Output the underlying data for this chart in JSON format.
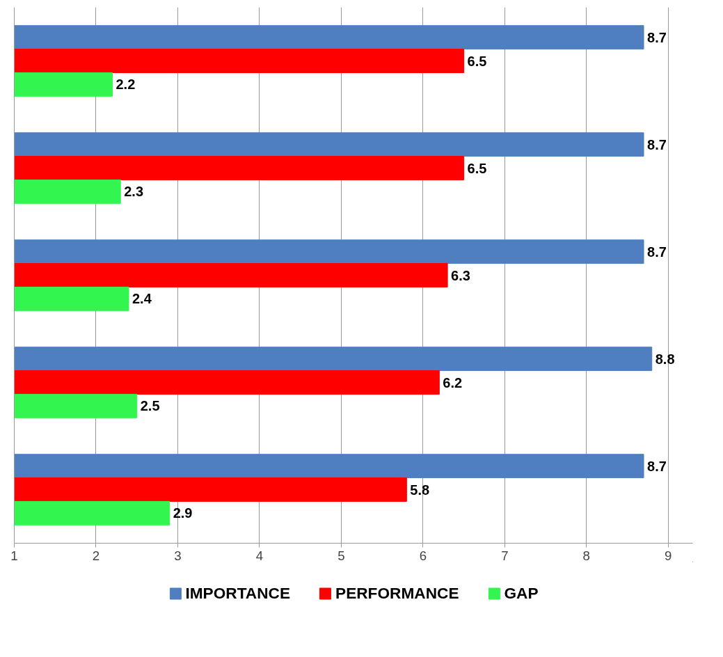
{
  "chart_data": {
    "type": "bar",
    "orientation": "horizontal",
    "categories": [
      null,
      null,
      null,
      null,
      null
    ],
    "series": [
      {
        "name": "IMPORTANCE",
        "color": "#4f7fc0",
        "values": [
          8.7,
          8.7,
          8.7,
          8.8,
          8.7
        ]
      },
      {
        "name": "PERFORMANCE",
        "color": "#ff0000",
        "values": [
          6.5,
          6.5,
          6.3,
          6.2,
          5.8
        ]
      },
      {
        "name": "GAP",
        "color": "#33f54f",
        "values": [
          2.2,
          2.3,
          2.4,
          2.5,
          2.9
        ]
      }
    ],
    "xlim": [
      1,
      9.3
    ],
    "xticks": [
      1,
      2,
      3,
      4,
      5,
      6,
      7,
      8,
      9
    ],
    "grid": "x",
    "legend": "bottom",
    "data_labels": true
  }
}
